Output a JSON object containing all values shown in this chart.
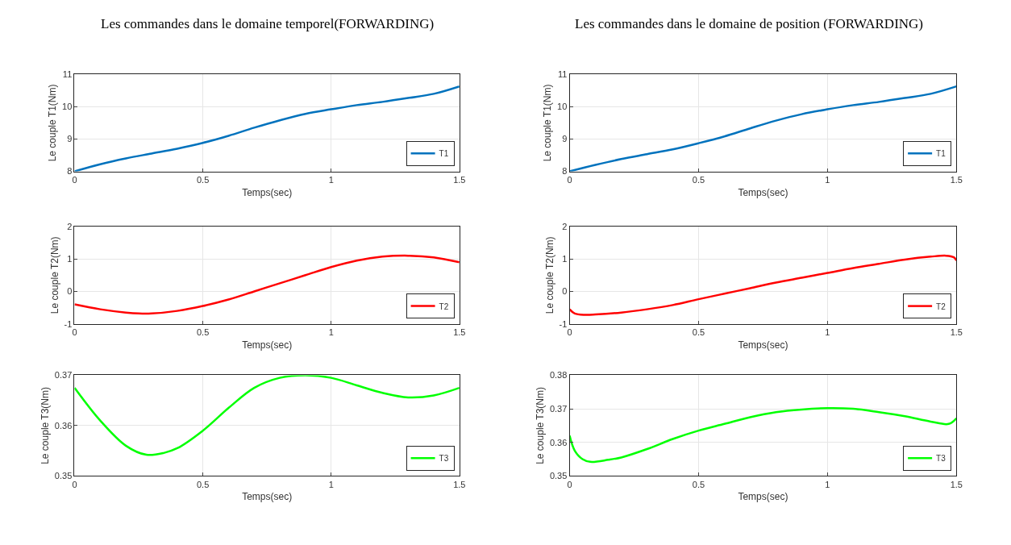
{
  "chart_data": [
    {
      "type": "line",
      "title": "Les commandes dans le domaine temporel(FORWARDING)",
      "xlabel": "Temps(sec)",
      "ylabel": "Le couple T1(Nm)",
      "xlim": [
        0,
        1.5
      ],
      "xticks": [
        0,
        0.5,
        1,
        1.5
      ],
      "ylim": [
        8,
        11
      ],
      "yticks": [
        8,
        9,
        10,
        11
      ],
      "grid": true,
      "legend": "bottom right",
      "x": [
        0,
        0.1,
        0.2,
        0.3,
        0.4,
        0.5,
        0.6,
        0.7,
        0.8,
        0.9,
        1.0,
        1.1,
        1.2,
        1.3,
        1.4,
        1.5
      ],
      "series": [
        {
          "name": "T1",
          "color": "#0072bd",
          "values": [
            8.0,
            8.22,
            8.4,
            8.55,
            8.7,
            8.88,
            9.1,
            9.35,
            9.58,
            9.78,
            9.92,
            10.05,
            10.15,
            10.27,
            10.4,
            10.63
          ]
        }
      ]
    },
    {
      "type": "line",
      "xlabel": "Temps(sec)",
      "ylabel": "Le couple T2(Nm)",
      "xlim": [
        0,
        1.5
      ],
      "xticks": [
        0,
        0.5,
        1,
        1.5
      ],
      "ylim": [
        -1,
        2
      ],
      "yticks": [
        -1,
        0,
        1,
        2
      ],
      "grid": true,
      "legend": "bottom right",
      "x": [
        0,
        0.1,
        0.2,
        0.25,
        0.3,
        0.4,
        0.5,
        0.6,
        0.7,
        0.8,
        0.9,
        1.0,
        1.1,
        1.2,
        1.3,
        1.4,
        1.5
      ],
      "series": [
        {
          "name": "T2",
          "color": "#ff0000",
          "values": [
            -0.4,
            -0.55,
            -0.65,
            -0.68,
            -0.68,
            -0.6,
            -0.45,
            -0.25,
            0.0,
            0.25,
            0.5,
            0.75,
            0.95,
            1.07,
            1.1,
            1.05,
            0.9
          ]
        }
      ]
    },
    {
      "type": "line",
      "xlabel": "Temps(sec)",
      "ylabel": "Le couple T3(Nm)",
      "xlim": [
        0,
        1.5
      ],
      "xticks": [
        0,
        0.5,
        1,
        1.5
      ],
      "ylim": [
        0.35,
        0.37
      ],
      "yticks": [
        0.35,
        0.36,
        0.37
      ],
      "grid": true,
      "legend": "bottom right",
      "x": [
        0,
        0.1,
        0.2,
        0.28,
        0.35,
        0.4,
        0.5,
        0.6,
        0.7,
        0.8,
        0.9,
        1.0,
        1.1,
        1.2,
        1.3,
        1.4,
        1.5
      ],
      "series": [
        {
          "name": "T3",
          "color": "#00ff00",
          "values": [
            0.3675,
            0.361,
            0.356,
            0.3542,
            0.3546,
            0.3555,
            0.359,
            0.3635,
            0.3675,
            0.3695,
            0.37,
            0.3695,
            0.368,
            0.3665,
            0.3656,
            0.366,
            0.3675
          ]
        }
      ]
    },
    {
      "type": "line",
      "title": "Les commandes dans le domaine de position (FORWARDING)",
      "xlabel": "Temps(sec)",
      "ylabel": "Le couple T1(Nm)",
      "xlim": [
        0,
        1.5
      ],
      "xticks": [
        0,
        0.5,
        1,
        1.5
      ],
      "ylim": [
        8,
        11
      ],
      "yticks": [
        8,
        9,
        10,
        11
      ],
      "grid": true,
      "legend": "bottom right",
      "x": [
        0,
        0.1,
        0.2,
        0.3,
        0.4,
        0.5,
        0.6,
        0.7,
        0.8,
        0.9,
        1.0,
        1.1,
        1.2,
        1.3,
        1.4,
        1.5
      ],
      "series": [
        {
          "name": "T1",
          "color": "#0072bd",
          "values": [
            8.0,
            8.2,
            8.38,
            8.53,
            8.68,
            8.87,
            9.08,
            9.33,
            9.57,
            9.77,
            9.92,
            10.05,
            10.15,
            10.27,
            10.4,
            10.63
          ]
        }
      ]
    },
    {
      "type": "line",
      "xlabel": "Temps(sec)",
      "ylabel": "Le couple T2(Nm)",
      "xlim": [
        0,
        1.5
      ],
      "xticks": [
        0,
        0.5,
        1,
        1.5
      ],
      "ylim": [
        -1,
        2
      ],
      "yticks": [
        -1,
        0,
        1,
        2
      ],
      "grid": true,
      "legend": "bottom right",
      "x": [
        0,
        0.02,
        0.06,
        0.1,
        0.2,
        0.3,
        0.4,
        0.5,
        0.6,
        0.7,
        0.8,
        0.9,
        1.0,
        1.1,
        1.2,
        1.3,
        1.4,
        1.46,
        1.49,
        1.5
      ],
      "series": [
        {
          "name": "T2",
          "color": "#ff0000",
          "values": [
            -0.55,
            -0.68,
            -0.72,
            -0.71,
            -0.65,
            -0.55,
            -0.42,
            -0.24,
            -0.07,
            0.1,
            0.27,
            0.42,
            0.57,
            0.72,
            0.85,
            0.98,
            1.07,
            1.1,
            1.05,
            0.95
          ]
        }
      ]
    },
    {
      "type": "line",
      "xlabel": "Temps(sec)",
      "ylabel": "Le couple T3(Nm)",
      "xlim": [
        0,
        1.5
      ],
      "xticks": [
        0,
        0.5,
        1,
        1.5
      ],
      "ylim": [
        0.35,
        0.38
      ],
      "yticks": [
        0.35,
        0.36,
        0.37,
        0.38
      ],
      "grid": true,
      "legend": "bottom right",
      "x": [
        0,
        0.02,
        0.05,
        0.08,
        0.15,
        0.2,
        0.3,
        0.4,
        0.5,
        0.6,
        0.7,
        0.8,
        0.9,
        1.0,
        1.1,
        1.2,
        1.3,
        1.4,
        1.47,
        1.5
      ],
      "series": [
        {
          "name": "T3",
          "color": "#00ff00",
          "values": [
            0.362,
            0.3575,
            0.355,
            0.3542,
            0.3548,
            0.3555,
            0.358,
            0.361,
            0.3635,
            0.3655,
            0.3675,
            0.369,
            0.3698,
            0.3702,
            0.37,
            0.369,
            0.3678,
            0.3662,
            0.3655,
            0.3672
          ]
        }
      ]
    }
  ]
}
